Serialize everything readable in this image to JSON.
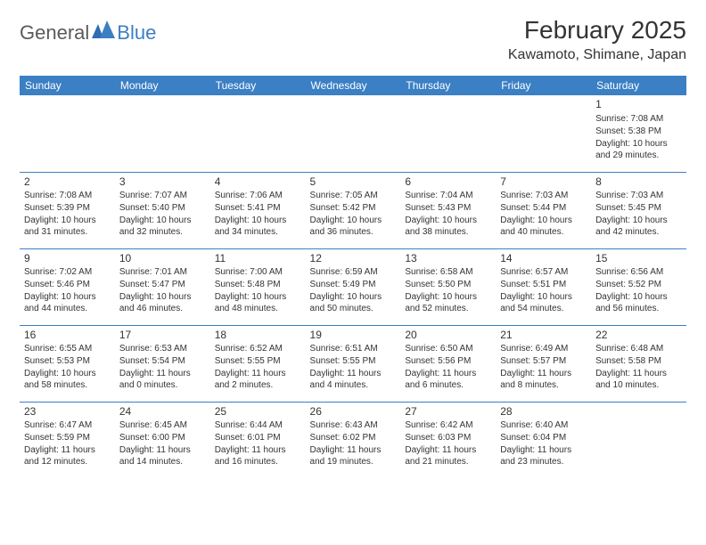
{
  "logo": {
    "general": "General",
    "blue": "Blue"
  },
  "title": {
    "month": "February 2025",
    "location": "Kawamoto, Shimane, Japan"
  },
  "colors": {
    "header_bg": "#3b7fc4",
    "header_text": "#ffffff",
    "border": "#3b7fc4",
    "text": "#333333",
    "logo_gray": "#5a5a5a",
    "logo_blue": "#3b7fc4",
    "page_bg": "#ffffff"
  },
  "weekdays": [
    "Sunday",
    "Monday",
    "Tuesday",
    "Wednesday",
    "Thursday",
    "Friday",
    "Saturday"
  ],
  "calendar": {
    "type": "table",
    "columns": 7,
    "rows": 5,
    "start_day_index": 6,
    "days": [
      {
        "n": "1",
        "sunrise": "7:08 AM",
        "sunset": "5:38 PM",
        "dl": "10 hours and 29 minutes."
      },
      {
        "n": "2",
        "sunrise": "7:08 AM",
        "sunset": "5:39 PM",
        "dl": "10 hours and 31 minutes."
      },
      {
        "n": "3",
        "sunrise": "7:07 AM",
        "sunset": "5:40 PM",
        "dl": "10 hours and 32 minutes."
      },
      {
        "n": "4",
        "sunrise": "7:06 AM",
        "sunset": "5:41 PM",
        "dl": "10 hours and 34 minutes."
      },
      {
        "n": "5",
        "sunrise": "7:05 AM",
        "sunset": "5:42 PM",
        "dl": "10 hours and 36 minutes."
      },
      {
        "n": "6",
        "sunrise": "7:04 AM",
        "sunset": "5:43 PM",
        "dl": "10 hours and 38 minutes."
      },
      {
        "n": "7",
        "sunrise": "7:03 AM",
        "sunset": "5:44 PM",
        "dl": "10 hours and 40 minutes."
      },
      {
        "n": "8",
        "sunrise": "7:03 AM",
        "sunset": "5:45 PM",
        "dl": "10 hours and 42 minutes."
      },
      {
        "n": "9",
        "sunrise": "7:02 AM",
        "sunset": "5:46 PM",
        "dl": "10 hours and 44 minutes."
      },
      {
        "n": "10",
        "sunrise": "7:01 AM",
        "sunset": "5:47 PM",
        "dl": "10 hours and 46 minutes."
      },
      {
        "n": "11",
        "sunrise": "7:00 AM",
        "sunset": "5:48 PM",
        "dl": "10 hours and 48 minutes."
      },
      {
        "n": "12",
        "sunrise": "6:59 AM",
        "sunset": "5:49 PM",
        "dl": "10 hours and 50 minutes."
      },
      {
        "n": "13",
        "sunrise": "6:58 AM",
        "sunset": "5:50 PM",
        "dl": "10 hours and 52 minutes."
      },
      {
        "n": "14",
        "sunrise": "6:57 AM",
        "sunset": "5:51 PM",
        "dl": "10 hours and 54 minutes."
      },
      {
        "n": "15",
        "sunrise": "6:56 AM",
        "sunset": "5:52 PM",
        "dl": "10 hours and 56 minutes."
      },
      {
        "n": "16",
        "sunrise": "6:55 AM",
        "sunset": "5:53 PM",
        "dl": "10 hours and 58 minutes."
      },
      {
        "n": "17",
        "sunrise": "6:53 AM",
        "sunset": "5:54 PM",
        "dl": "11 hours and 0 minutes."
      },
      {
        "n": "18",
        "sunrise": "6:52 AM",
        "sunset": "5:55 PM",
        "dl": "11 hours and 2 minutes."
      },
      {
        "n": "19",
        "sunrise": "6:51 AM",
        "sunset": "5:55 PM",
        "dl": "11 hours and 4 minutes."
      },
      {
        "n": "20",
        "sunrise": "6:50 AM",
        "sunset": "5:56 PM",
        "dl": "11 hours and 6 minutes."
      },
      {
        "n": "21",
        "sunrise": "6:49 AM",
        "sunset": "5:57 PM",
        "dl": "11 hours and 8 minutes."
      },
      {
        "n": "22",
        "sunrise": "6:48 AM",
        "sunset": "5:58 PM",
        "dl": "11 hours and 10 minutes."
      },
      {
        "n": "23",
        "sunrise": "6:47 AM",
        "sunset": "5:59 PM",
        "dl": "11 hours and 12 minutes."
      },
      {
        "n": "24",
        "sunrise": "6:45 AM",
        "sunset": "6:00 PM",
        "dl": "11 hours and 14 minutes."
      },
      {
        "n": "25",
        "sunrise": "6:44 AM",
        "sunset": "6:01 PM",
        "dl": "11 hours and 16 minutes."
      },
      {
        "n": "26",
        "sunrise": "6:43 AM",
        "sunset": "6:02 PM",
        "dl": "11 hours and 19 minutes."
      },
      {
        "n": "27",
        "sunrise": "6:42 AM",
        "sunset": "6:03 PM",
        "dl": "11 hours and 21 minutes."
      },
      {
        "n": "28",
        "sunrise": "6:40 AM",
        "sunset": "6:04 PM",
        "dl": "11 hours and 23 minutes."
      }
    ]
  },
  "labels": {
    "sunrise": "Sunrise:",
    "sunset": "Sunset:",
    "daylight": "Daylight:"
  }
}
